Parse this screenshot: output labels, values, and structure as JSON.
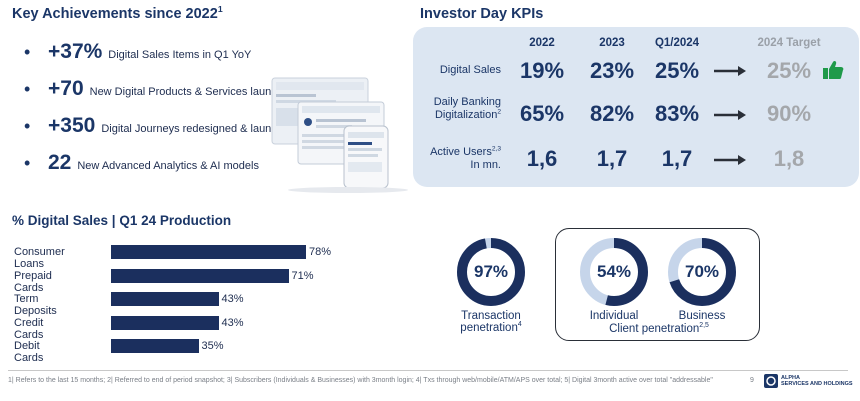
{
  "achievements": {
    "title": "Key Achievements since 2022",
    "title_sup": "1",
    "items": [
      {
        "bullet": "•",
        "number": "+37%",
        "text": "Digital Sales Items in Q1 YoY"
      },
      {
        "bullet": "•",
        "number": "+70",
        "text": "New Digital Products & Services launched"
      },
      {
        "bullet": "•",
        "number": "+350",
        "text": "Digital Journeys redesigned & launched"
      },
      {
        "bullet": "•",
        "number": "22",
        "text": "New Advanced Analytics & AI models"
      }
    ]
  },
  "kpis": {
    "title": "Investor Day KPIs",
    "headers": [
      "2022",
      "2023",
      "Q1/2024",
      "2024 Target"
    ],
    "rows": [
      {
        "label_line1": "Digital Sales",
        "label_line2": "",
        "sup": "",
        "values": [
          "19%",
          "23%",
          "25%"
        ],
        "target": "25%",
        "thumbs_up": true
      },
      {
        "label_line1": "Daily Banking",
        "label_line2": "Digitalization",
        "sup": "2",
        "values": [
          "65%",
          "82%",
          "83%"
        ],
        "target": "90%",
        "thumbs_up": false
      },
      {
        "label_line1": "Active Users",
        "label_line2": "In mn.",
        "sup": "2,3",
        "values": [
          "1,6",
          "1,7",
          "1,7"
        ],
        "target": "1,8",
        "thumbs_up": false
      }
    ],
    "thumbs_color": "#1f9a4a"
  },
  "digital_sales_chart": {
    "title": "% Digital Sales | Q1 24 Production"
  },
  "chart_data": {
    "type": "bar",
    "orientation": "horizontal",
    "title": "% Digital Sales | Q1 24 Production",
    "categories": [
      "Consumer Loans",
      "Prepaid Cards",
      "Term Deposits",
      "Credit Cards",
      "Debit Cards"
    ],
    "values": [
      78,
      71,
      43,
      43,
      35
    ],
    "value_labels": [
      "78%",
      "71%",
      "43%",
      "43%",
      "35%"
    ],
    "xlim": [
      0,
      100
    ],
    "bar_color": "#1b2f5e"
  },
  "penetration": {
    "transaction": {
      "value": 97,
      "label": "97%",
      "caption": "Transaction",
      "caption2": "penetration",
      "sup": "4"
    },
    "client": {
      "individual": {
        "value": 54,
        "label": "54%",
        "caption": "Individual"
      },
      "business": {
        "value": 70,
        "label": "70%",
        "caption": "Business"
      },
      "caption": "Client penetration",
      "sup": "2,5"
    },
    "ring_color": "#1b2f5e",
    "track_color": "#c6d5ea"
  },
  "footer": {
    "text": "1| Refers to the last 15 months; 2| Referred to end of period snapshot; 3| Subscribers (Individuals & Businesses) with 3month login; 4| Txs through web/mobile/ATM/APS over total; 5| Digital 3month active over total \"addressable\"",
    "page_number": "9",
    "brand_line1": "ALPHA",
    "brand_line2": "SERVICES AND HOLDINGS"
  }
}
